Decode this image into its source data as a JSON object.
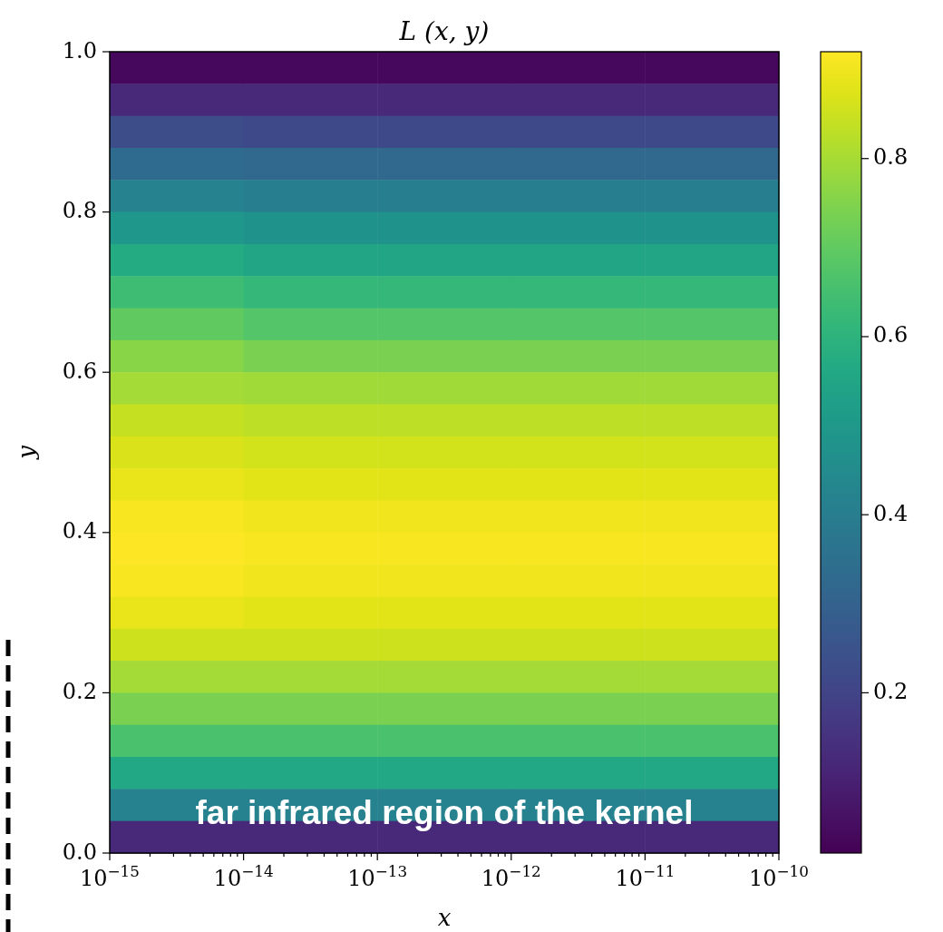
{
  "chart_data": {
    "type": "heatmap",
    "title": "L (x, y)",
    "xlabel": "x",
    "ylabel": "y",
    "log": "x",
    "x": [
      3.16e-15,
      3.16e-14,
      3.16e-13,
      3.16e-12,
      3.16e-11
    ],
    "y": [
      0.98,
      0.94,
      0.9,
      0.86,
      0.82,
      0.78,
      0.74,
      0.7,
      0.66,
      0.62,
      0.58,
      0.54,
      0.5,
      0.46,
      0.42,
      0.38,
      0.34,
      0.3,
      0.26,
      0.22,
      0.18,
      0.14,
      0.1,
      0.06,
      0.02
    ],
    "cells": [
      [
        0.04,
        0.04,
        0.04,
        0.04,
        0.04
      ],
      [
        0.12,
        0.12,
        0.12,
        0.12,
        0.12
      ],
      [
        0.23,
        0.22,
        0.22,
        0.22,
        0.22
      ],
      [
        0.33,
        0.32,
        0.32,
        0.32,
        0.32
      ],
      [
        0.42,
        0.4,
        0.4,
        0.4,
        0.4
      ],
      [
        0.5,
        0.48,
        0.48,
        0.48,
        0.48
      ],
      [
        0.57,
        0.55,
        0.55,
        0.55,
        0.55
      ],
      [
        0.64,
        0.62,
        0.62,
        0.62,
        0.62
      ],
      [
        0.7,
        0.68,
        0.68,
        0.68,
        0.68
      ],
      [
        0.76,
        0.74,
        0.74,
        0.74,
        0.74
      ],
      [
        0.8,
        0.79,
        0.79,
        0.79,
        0.79
      ],
      [
        0.84,
        0.83,
        0.83,
        0.83,
        0.83
      ],
      [
        0.87,
        0.86,
        0.86,
        0.86,
        0.86
      ],
      [
        0.89,
        0.88,
        0.88,
        0.88,
        0.88
      ],
      [
        0.91,
        0.9,
        0.9,
        0.9,
        0.9
      ],
      [
        0.92,
        0.91,
        0.91,
        0.91,
        0.91
      ],
      [
        0.91,
        0.9,
        0.9,
        0.9,
        0.9
      ],
      [
        0.89,
        0.88,
        0.88,
        0.88,
        0.88
      ],
      [
        0.85,
        0.85,
        0.85,
        0.85,
        0.85
      ],
      [
        0.8,
        0.8,
        0.8,
        0.8,
        0.8
      ],
      [
        0.74,
        0.74,
        0.74,
        0.74,
        0.74
      ],
      [
        0.66,
        0.66,
        0.66,
        0.66,
        0.66
      ],
      [
        0.56,
        0.56,
        0.56,
        0.56,
        0.56
      ],
      [
        0.42,
        0.42,
        0.42,
        0.42,
        0.42
      ],
      [
        0.12,
        0.12,
        0.12,
        0.12,
        0.12
      ]
    ],
    "xlim": [
      1e-15,
      1e-10
    ],
    "ylim": [
      0,
      1
    ],
    "xticks": [
      {
        "value": 1e-15,
        "label": "10$^{−15}$"
      },
      {
        "value": 2e-15,
        "label": null
      },
      {
        "value": 3e-15,
        "label": null
      },
      {
        "value": 4e-15,
        "label": null
      },
      {
        "value": 5e-15,
        "label": null
      },
      {
        "value": 6e-15,
        "label": null
      },
      {
        "value": 7e-15,
        "label": null
      },
      {
        "value": 8e-15,
        "label": null
      },
      {
        "value": 9e-15,
        "label": null
      },
      {
        "value": 1e-14,
        "label": "10$^{−14}$"
      },
      {
        "value": 2e-14,
        "label": null
      },
      {
        "value": 3e-14,
        "label": null
      },
      {
        "value": 4e-14,
        "label": null
      },
      {
        "value": 5e-14,
        "label": null
      },
      {
        "value": 6e-14,
        "label": null
      },
      {
        "value": 7e-14,
        "label": null
      },
      {
        "value": 8e-14,
        "label": null
      },
      {
        "value": 9e-14,
        "label": null
      },
      {
        "value": 1e-13,
        "label": "10$^{−13}$"
      },
      {
        "value": 2e-13,
        "label": null
      },
      {
        "value": 3e-13,
        "label": null
      },
      {
        "value": 4e-13,
        "label": null
      },
      {
        "value": 5e-13,
        "label": null
      },
      {
        "value": 6e-13,
        "label": null
      },
      {
        "value": 7e-13,
        "label": null
      },
      {
        "value": 8e-13,
        "label": null
      },
      {
        "value": 9e-13,
        "label": null
      },
      {
        "value": 1e-12,
        "label": "10$^{−12}$"
      },
      {
        "value": 2e-12,
        "label": null
      },
      {
        "value": 3e-12,
        "label": null
      },
      {
        "value": 4e-12,
        "label": null
      },
      {
        "value": 5e-12,
        "label": null
      },
      {
        "value": 6e-12,
        "label": null
      },
      {
        "value": 7e-12,
        "label": null
      },
      {
        "value": 8e-12,
        "label": null
      },
      {
        "value": 9e-12,
        "label": null
      },
      {
        "value": 1e-11,
        "label": "10$^{−11}$"
      },
      {
        "value": 2e-11,
        "label": null
      },
      {
        "value": 3e-11,
        "label": null
      },
      {
        "value": 4e-11,
        "label": null
      },
      {
        "value": 5e-11,
        "label": null
      },
      {
        "value": 6e-11,
        "label": null
      },
      {
        "value": 7e-11,
        "label": null
      },
      {
        "value": 8e-11,
        "label": null
      },
      {
        "value": 9e-11,
        "label": null
      },
      {
        "value": 1e-10,
        "label": "10$^{−10}$"
      }
    ],
    "yticks": [
      {
        "value": 0,
        "label": "0.0"
      },
      0.2,
      0.4,
      0.6,
      0.8,
      {
        "value": 1,
        "label": "1.0"
      }
    ],
    "clim": [
      0.02,
      0.92
    ],
    "cticks": [
      0.2,
      0.4,
      0.6,
      0.8
    ],
    "annotations": [
      "far infrared region of the kernel"
    ]
  }
}
